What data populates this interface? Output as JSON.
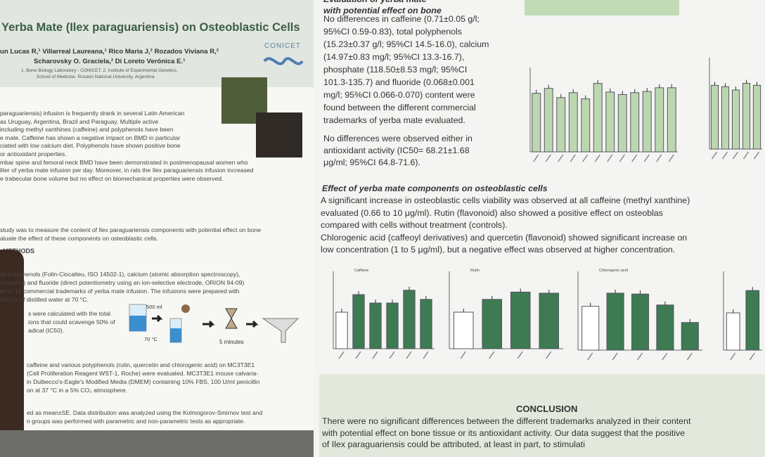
{
  "left_panel": {
    "title": "Yerba Mate (Ilex paraguariensis) on Osteoblastic Cells",
    "authors": [
      "un Lucas R,¹ Villarreal Laureana,¹ Rico Maria J,² Rozados Viviana R,²",
      "Scharovsky O. Graciela,² Di Loreto Verónica E.¹"
    ],
    "affiliations": [
      "1. Bone Biology Laboratory - CONICET. 2. Institute of Experimental Genetics.",
      "School of Medicine. Rosario National University. Argentina"
    ],
    "logo": "CONICET",
    "introduction": [
      "paraguariensis) infusion is frequently drank in several Latin American",
      "as Uruguay, Argentina, Brazil and Paraguay. Multiple active",
      "including methyl xanthines (caffeine) and polyphenols have been",
      "e mate. Caffeine has shown a negative impact on BMD in particular",
      "ciated with low calcium diet. Polyphenols have shown positive bone",
      "or antioxidant properties.",
      "mbar spine and femoral neck BMD have been demonstrated in postmenopausal women who",
      "liter of yerba mate infusion per day. Moreover, in rats the Ilex paraguariensis infusion increased",
      "e trabecular bone volume but no effect on biomechanical properties were observed."
    ],
    "aim": [
      "study was to measure the content of Ilex paraguariensis components with potential effect on bone",
      "aluate the effect of these components on osteoblastic cells."
    ],
    "methods_heading": "METHODS",
    "methods": [
      "tal polyphenols (Folin-Ciocalteu, ISO 14502-1), calcium (atomic absorption spectroscopy),",
      "otometry) and fluoride (direct potentiometry using an ion-selective electrode, ORION 94-09)",
      "ed in 12 commercial trademarks of yerba mate infusion. The infusions were prepared with",
      "500 ml of distilled water at 70 °C."
    ],
    "antioxidant": [
      "s were calculated with the total",
      "ions that could scavenge 50% of",
      "adical (IC50)."
    ],
    "diagram_labels": [
      "500 ml",
      "70 °C",
      "5 minutes"
    ],
    "cells": [
      "caffeine and various polyphenols (rutin, quercetin and chlorogenic acid) on MC3T3E1",
      "(Cell Proliferation Reagent WST-1, Roche) were evaluated. MC3T3E1 mouse calvaria-",
      "in Dulbecco's-Eagle's Modified Media (DMEM) containing 10% FBS, 100 U/ml penicillin",
      "on at 37 °C in a 5% CO₂ atmosphere."
    ],
    "statistics": [
      "ed as mean±SE. Data distribution was analyzed using the Kolmogorov-Smirnov test and",
      "n groups was performed with parametric and non-parametric tests as appropriate."
    ]
  },
  "right_panel": {
    "heading_1": [
      "Evaluation of yerba mate",
      "with potential effect on bone"
    ],
    "paragraph_1": [
      "No differences in caffeine (0.71±0.05 g/l;",
      "95%CI 0.59-0.83), total polyphenols",
      "(15.23±0.37 g/l; 95%CI 14.5-16.0), calcium",
      "(14.97±0.83 mg/l; 95%CI 13.3-16.7),",
      "phosphate (118.50±8.53 mg/l; 95%CI",
      "101.3-135.7) and fluoride (0.068±0.001",
      "mg/l; 95%CI 0.066-0.070) content were",
      "found between the different commercial",
      "trademarks of yerba mate evaluated."
    ],
    "paragraph_2": [
      "No differences were observed either in",
      "antioxidant activity (IC50= 68.21±1.68",
      "μg/ml; 95%CI 64.8-71.6)."
    ],
    "heading_2": "Effect of yerba mate components on osteoblastic cells",
    "paragraph_3": [
      "A significant increase in osteoblastic cells viability was observed at all caffeine (methyl xanthine)",
      "evaluated (0.66 to 10 μg/ml). Rutin (flavonoid) also showed a positive effect on osteoblas",
      "compared with cells without treatment (controls).",
      "Chlorogenic acid (caffeoyl derivatives) and quercetin (flavonoid) showed significant increase on",
      "low concentration (1 to 5 μg/ml), but a negative effect was observed at higher concentration."
    ],
    "conclusion_heading": "CONCLUSION",
    "conclusion": [
      "There were no significant differences between the different trademarks analyzed in their content",
      "with potential effect on bone tissue or its antioxidant activity. Our data suggest that the positive",
      "of Ilex paraguariensis could be attributed, at least in part, to stimulati"
    ]
  },
  "chart_data": [
    {
      "type": "bar",
      "values": [
        95,
        103,
        88,
        96,
        86,
        111,
        97,
        93,
        96,
        98,
        104,
        104
      ],
      "colors": [
        "#bcd7b0",
        "#bcd7b0",
        "#bcd7b0",
        "#bcd7b0",
        "#bcd7b0",
        "#bcd7b0",
        "#bcd7b0",
        "#bcd7b0",
        "#bcd7b0",
        "#bcd7b0",
        "#bcd7b0",
        "#bcd7b0"
      ],
      "ylim": [
        0,
        130
      ]
    },
    {
      "type": "bar",
      "values": [
        95,
        93,
        88,
        98,
        95
      ],
      "colors": [
        "#bcd7b0",
        "#bcd7b0",
        "#bcd7b0",
        "#bcd7b0",
        "#bcd7b0"
      ],
      "ylim": [
        0,
        130
      ]
    },
    {
      "type": "bar",
      "title": "Caffeine",
      "values": [
        100,
        148,
        125,
        125,
        160,
        135
      ],
      "colors": [
        "#ffffff",
        "#3e7a52",
        "#3e7a52",
        "#3e7a52",
        "#3e7a52",
        "#3e7a52"
      ],
      "ylim": [
        0,
        200
      ]
    },
    {
      "type": "bar",
      "title": "Rutin",
      "values": [
        100,
        135,
        155,
        152
      ],
      "colors": [
        "#ffffff",
        "#3e7a52",
        "#3e7a52",
        "#3e7a52"
      ],
      "ylim": [
        0,
        200
      ]
    },
    {
      "type": "bar",
      "title": "Chlorogenic acid",
      "values": [
        100,
        130,
        128,
        103,
        63
      ],
      "colors": [
        "#ffffff",
        "#3e7a52",
        "#3e7a52",
        "#3e7a52",
        "#3e7a52"
      ],
      "ylim": [
        0,
        170
      ]
    },
    {
      "type": "bar",
      "values": [
        100,
        160
      ],
      "colors": [
        "#ffffff",
        "#3e7a52"
      ],
      "ylim": [
        0,
        200
      ]
    }
  ]
}
